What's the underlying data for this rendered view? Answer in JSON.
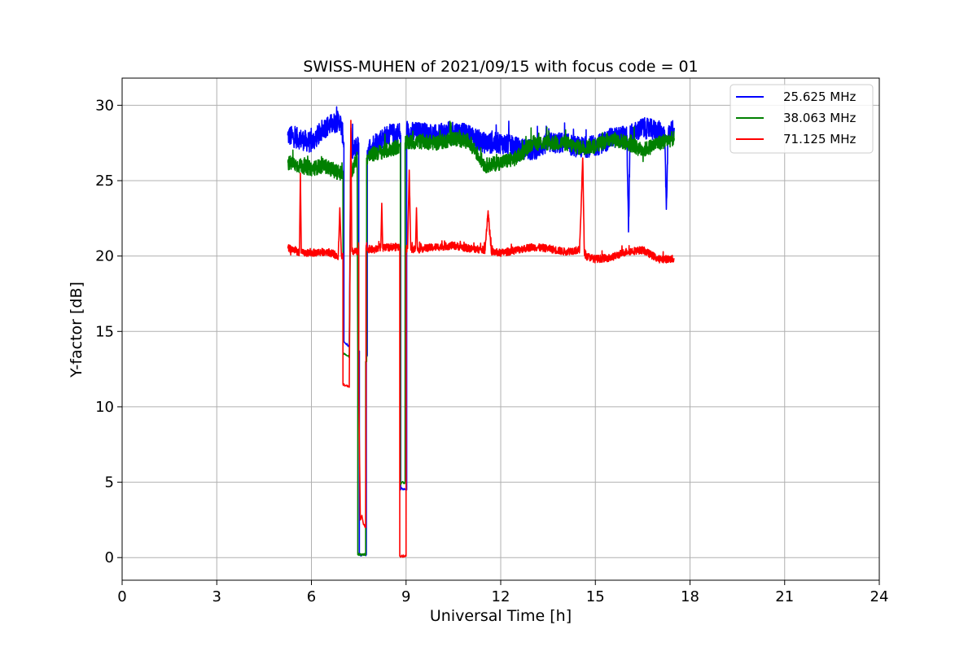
{
  "chart_data": {
    "type": "line",
    "title": "SWISS-MUHEN of 2021/09/15 with focus code = 01",
    "xlabel": "Universal Time [h]",
    "ylabel": "Y-factor [dB]",
    "xlim": [
      0,
      24
    ],
    "ylim": [
      -1.5,
      31.8
    ],
    "xticks": [
      0,
      3,
      6,
      9,
      12,
      15,
      18,
      21,
      24
    ],
    "yticks": [
      0,
      5,
      10,
      15,
      20,
      25,
      30
    ],
    "grid": true,
    "legend_position": "top-right",
    "series": [
      {
        "name": "25.625 MHz",
        "color": "#0000ff",
        "noise": 0.7,
        "x": [
          5.25,
          5.6,
          6.0,
          6.4,
          6.9,
          7.0,
          7.03,
          7.03,
          7.2,
          7.25,
          7.28,
          7.35,
          7.5,
          7.5,
          7.52,
          7.52,
          7.6,
          7.74,
          7.74,
          7.77,
          7.77,
          8.0,
          8.4,
          8.8,
          8.83,
          8.83,
          8.85,
          8.9,
          9.0,
          9.02,
          9.02,
          9.5,
          10.0,
          10.5,
          11.0,
          11.5,
          12.0,
          12.5,
          13.0,
          13.5,
          14.0,
          14.5,
          15.0,
          15.5,
          16.0,
          16.05,
          16.1,
          16.5,
          17.0,
          17.2,
          17.25,
          17.3,
          17.5
        ],
        "y": [
          28.0,
          27.8,
          27.5,
          28.5,
          29.0,
          28.0,
          27.5,
          14.3,
          14.0,
          28.5,
          27.0,
          27.0,
          27.5,
          13.5,
          13.7,
          0.2,
          0.15,
          0.2,
          13.4,
          13.4,
          27.0,
          27.5,
          28.0,
          28.2,
          28.0,
          4.5,
          4.6,
          4.5,
          4.6,
          4.5,
          28.2,
          28.2,
          28.0,
          28.3,
          28.0,
          27.5,
          27.5,
          27.2,
          27.0,
          27.5,
          27.5,
          27.2,
          27.3,
          27.8,
          28.0,
          21.6,
          28.0,
          28.5,
          28.3,
          28.0,
          23.1,
          28.0,
          28.5
        ]
      },
      {
        "name": "38.063 MHz",
        "color": "#008000",
        "noise": 0.5,
        "x": [
          5.25,
          5.6,
          6.0,
          6.4,
          6.9,
          7.0,
          7.0,
          7.2,
          7.25,
          7.28,
          7.35,
          7.45,
          7.47,
          7.47,
          7.6,
          7.72,
          7.72,
          7.75,
          7.75,
          8.0,
          8.4,
          8.8,
          8.82,
          8.82,
          8.9,
          8.95,
          8.97,
          8.97,
          9.5,
          10.0,
          10.5,
          11.0,
          11.5,
          12.0,
          12.5,
          13.0,
          13.5,
          14.0,
          14.5,
          15.0,
          15.5,
          16.0,
          16.5,
          17.0,
          17.5
        ],
        "y": [
          26.2,
          26.0,
          25.8,
          26.0,
          25.5,
          25.5,
          13.6,
          13.3,
          26.5,
          25.5,
          26.0,
          26.5,
          13.1,
          0.2,
          0.2,
          0.2,
          13.0,
          13.0,
          26.5,
          26.8,
          27.0,
          27.3,
          27.5,
          4.9,
          5.0,
          4.9,
          5.0,
          27.5,
          27.6,
          27.5,
          27.8,
          27.6,
          26.0,
          26.2,
          26.5,
          27.5,
          27.5,
          27.5,
          27.2,
          27.3,
          27.8,
          27.5,
          27.0,
          27.5,
          27.8
        ]
      },
      {
        "name": "71.125 MHz",
        "color": "#ff0000",
        "noise": 0.25,
        "x": [
          5.25,
          5.5,
          5.62,
          5.65,
          5.68,
          6.0,
          6.5,
          6.85,
          6.9,
          6.95,
          7.0,
          7.0,
          7.2,
          7.25,
          7.28,
          7.4,
          7.5,
          7.5,
          7.55,
          7.6,
          7.65,
          7.72,
          7.73,
          7.73,
          8.0,
          8.2,
          8.23,
          8.26,
          8.5,
          8.78,
          8.8,
          8.8,
          8.85,
          8.95,
          9.0,
          9.0,
          9.05,
          9.1,
          9.15,
          9.3,
          9.33,
          9.36,
          9.5,
          10.0,
          10.5,
          11.0,
          11.5,
          11.6,
          11.7,
          12.0,
          12.5,
          13.0,
          13.5,
          14.0,
          14.5,
          14.6,
          14.65,
          14.7,
          15.0,
          15.5,
          16.0,
          16.5,
          17.0,
          17.5
        ],
        "y": [
          20.5,
          20.4,
          20.2,
          25.5,
          20.2,
          20.2,
          20.3,
          20.0,
          23.2,
          20.0,
          20.0,
          11.5,
          11.3,
          29.0,
          20.3,
          20.3,
          20.2,
          11.0,
          2.5,
          2.8,
          2.2,
          2.0,
          10.8,
          20.5,
          20.4,
          20.6,
          23.5,
          20.5,
          20.6,
          20.6,
          20.5,
          0.1,
          0.1,
          0.1,
          0.1,
          20.5,
          20.5,
          25.7,
          20.4,
          20.5,
          23.2,
          20.4,
          20.5,
          20.6,
          20.7,
          20.5,
          20.4,
          23.0,
          20.3,
          20.2,
          20.4,
          20.6,
          20.5,
          20.3,
          20.4,
          26.5,
          20.3,
          20.0,
          19.8,
          19.9,
          20.3,
          20.4,
          19.8,
          19.8
        ]
      }
    ]
  }
}
